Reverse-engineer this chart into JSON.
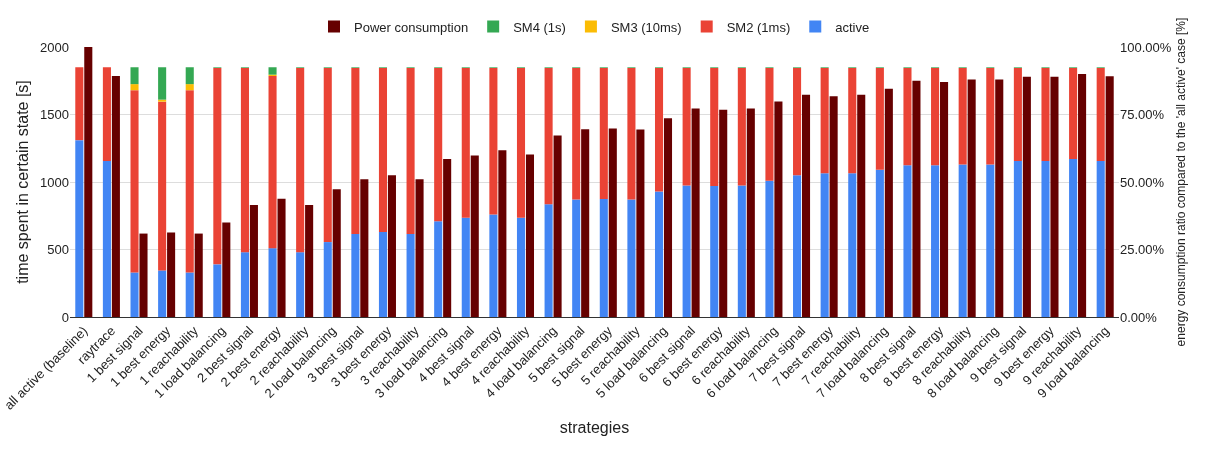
{
  "chart_data": {
    "type": "bar",
    "stacked": true,
    "xlabel": "strategies",
    "ylabel": "time spent in certain state [s]",
    "y2label": "energy consumption ratio compared to the 'all active' case [%]",
    "categories": [
      "all active (baseline)",
      "raytrace",
      "1 best signal",
      "1 best energy",
      "1 reachability",
      "1 load balancing",
      "2 best signal",
      "2 best energy",
      "2 reachability",
      "2 load balancing",
      "3 best signal",
      "3 best energy",
      "3 reachability",
      "3 load balancing",
      "4 best signal",
      "4 best energy",
      "4 reachability",
      "4 load balancing",
      "5 best signal",
      "5 best energy",
      "5 reachability",
      "5 load balancing",
      "6 best signal",
      "6 best energy",
      "6 reachability",
      "6 load balancing",
      "7 best signal",
      "7 best energy",
      "7 reachability",
      "7 load balancing",
      "8 best signal",
      "8 best energy",
      "8 reachability",
      "8 load balancing",
      "9 best signal",
      "9 best energy",
      "9 reachability",
      "9 load balancing"
    ],
    "series": [
      {
        "name": "active",
        "color": "#4285f4",
        "values": [
          1310,
          1155,
          330,
          345,
          330,
          390,
          480,
          510,
          480,
          555,
          615,
          630,
          615,
          710,
          735,
          760,
          735,
          835,
          870,
          875,
          870,
          930,
          975,
          970,
          975,
          1010,
          1050,
          1065,
          1065,
          1090,
          1125,
          1125,
          1130,
          1130,
          1155,
          1155,
          1170,
          1155
        ]
      },
      {
        "name": "SM2 (1ms)",
        "color": "#ea4335",
        "values": [
          540,
          695,
          1350,
          1250,
          1350,
          1455,
          1365,
          1275,
          1365,
          1290,
          1230,
          1215,
          1230,
          1135,
          1110,
          1085,
          1110,
          1010,
          975,
          970,
          975,
          915,
          870,
          875,
          870,
          835,
          795,
          780,
          780,
          755,
          720,
          720,
          715,
          715,
          690,
          690,
          675,
          690
        ]
      },
      {
        "name": "SM3 (10ms)",
        "color": "#fbbc04",
        "values": [
          0,
          0,
          45,
          15,
          45,
          0,
          0,
          10,
          0,
          0,
          0,
          0,
          0,
          0,
          0,
          0,
          0,
          0,
          0,
          0,
          0,
          0,
          0,
          0,
          0,
          0,
          0,
          0,
          0,
          0,
          0,
          0,
          0,
          0,
          0,
          0,
          0,
          0
        ]
      },
      {
        "name": "SM4 (1s)",
        "color": "#34a853",
        "values": [
          0,
          0,
          125,
          240,
          125,
          5,
          5,
          55,
          5,
          5,
          5,
          5,
          5,
          5,
          5,
          5,
          5,
          5,
          5,
          5,
          5,
          5,
          5,
          5,
          5,
          5,
          5,
          5,
          5,
          5,
          5,
          5,
          5,
          5,
          5,
          5,
          5,
          5
        ]
      },
      {
        "name": "Power consumption",
        "color": "#660000",
        "axis": "y2",
        "values": [
          100,
          89.3,
          30.9,
          31.3,
          30.9,
          35,
          41.5,
          43.8,
          41.5,
          47.3,
          51,
          52.5,
          51,
          58.5,
          59.8,
          61.8,
          60.2,
          67.2,
          69.5,
          69.8,
          69.4,
          73.6,
          77.2,
          76.8,
          77.2,
          79.8,
          82.3,
          81.8,
          82.3,
          84.5,
          87.5,
          87,
          88,
          88,
          89,
          89,
          90,
          89.2
        ]
      }
    ],
    "ylim": [
      0,
      2000
    ],
    "yticks": [
      0,
      500,
      1000,
      1500,
      2000
    ],
    "y2lim": [
      0,
      100
    ],
    "y2ticks": [
      {
        "value": 0,
        "label": "0.00%"
      },
      {
        "value": 25,
        "label": "25.00%"
      },
      {
        "value": 50,
        "label": "50.00%"
      },
      {
        "value": 75,
        "label": "75.00%"
      },
      {
        "value": 100,
        "label": "100.00%"
      }
    ],
    "grid": "y",
    "legend": "top"
  }
}
